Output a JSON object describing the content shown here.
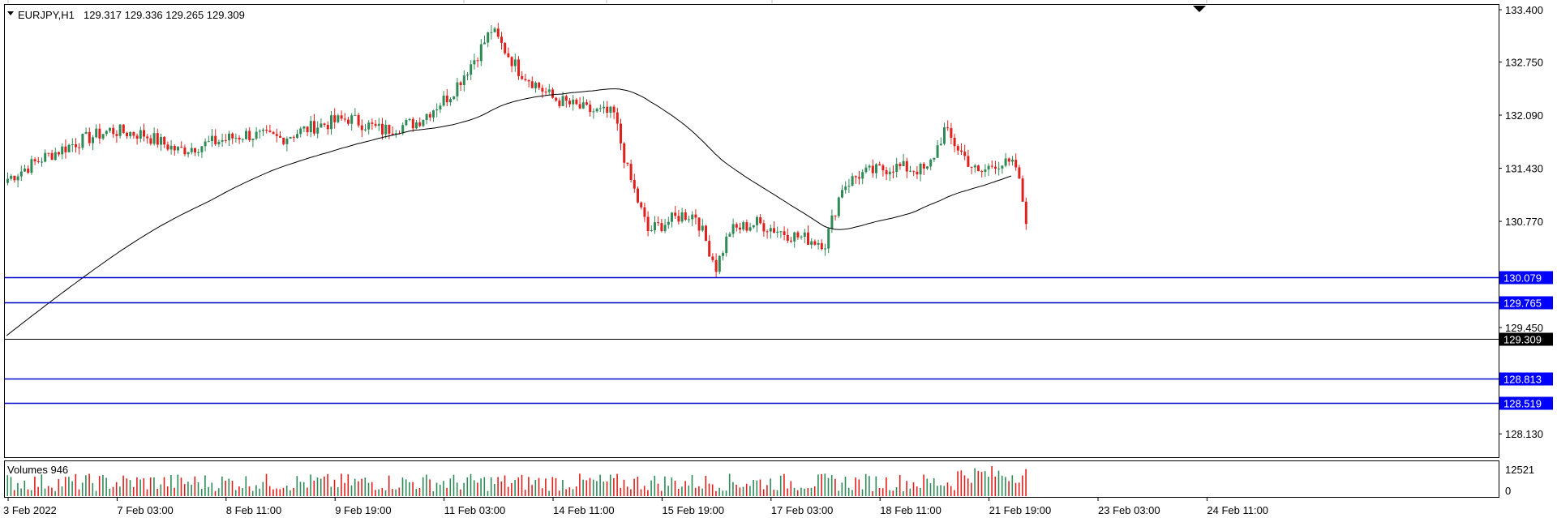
{
  "header": {
    "symbol_label": "EURJPY,H1",
    "ohlc_label": "129.317 129.336 129.265 129.309"
  },
  "volume_panel": {
    "label": "Volumes 946",
    "max_label": "12521",
    "min_label": "0"
  },
  "colors": {
    "bull": "#2e8b57",
    "bear": "#e0201c",
    "level_line": "#0000cc",
    "level_label_bg": "#0000ff",
    "moving_average": "#000000",
    "price_line": "#000000",
    "current_price_bg": "#000000"
  },
  "chart_data": {
    "type": "candlestick",
    "symbol": "EURJPY",
    "timeframe": "H1",
    "y_ticks": [
      "133.400",
      "132.750",
      "132.090",
      "131.430",
      "130.770",
      "129.450",
      "128.130"
    ],
    "y_range": [
      127.85,
      133.46
    ],
    "x_ticks": [
      "3 Feb 2022",
      "7 Feb 03:00",
      "8 Feb 11:00",
      "9 Feb 19:00",
      "11 Feb 03:00",
      "14 Feb 11:00",
      "15 Feb 19:00",
      "17 Feb 03:00",
      "18 Feb 11:00",
      "21 Feb 19:00",
      "23 Feb 03:00",
      "24 Feb 11:00"
    ],
    "bars_per_tick": 32,
    "total_bars": 300,
    "price_path": [
      [
        0,
        131.3
      ],
      [
        10,
        131.55
      ],
      [
        20,
        131.75
      ],
      [
        30,
        131.9
      ],
      [
        40,
        131.85
      ],
      [
        50,
        131.65
      ],
      [
        60,
        131.75
      ],
      [
        70,
        131.85
      ],
      [
        80,
        131.8
      ],
      [
        90,
        131.95
      ],
      [
        100,
        132.05
      ],
      [
        110,
        131.9
      ],
      [
        120,
        132.0
      ],
      [
        130,
        132.35
      ],
      [
        138,
        132.85
      ],
      [
        142,
        133.15
      ],
      [
        150,
        132.65
      ],
      [
        160,
        132.3
      ],
      [
        170,
        132.15
      ],
      [
        178,
        132.1
      ],
      [
        182,
        131.4
      ],
      [
        188,
        130.65
      ],
      [
        198,
        130.85
      ],
      [
        202,
        130.85
      ],
      [
        208,
        130.2
      ],
      [
        212,
        130.65
      ],
      [
        220,
        130.75
      ],
      [
        230,
        130.6
      ],
      [
        240,
        130.5
      ],
      [
        245,
        131.2
      ],
      [
        250,
        131.35
      ],
      [
        260,
        131.45
      ],
      [
        270,
        131.4
      ],
      [
        275,
        131.9
      ],
      [
        285,
        131.35
      ],
      [
        290,
        131.5
      ],
      [
        296,
        131.45
      ],
      [
        300,
        130.6
      ]
    ],
    "levels": [
      {
        "label": "130.079",
        "value": 130.079,
        "kind": "support_resistance"
      },
      {
        "label": "129.765",
        "value": 129.765,
        "kind": "support_resistance"
      },
      {
        "label": "129.309",
        "value": 129.309,
        "kind": "current_price"
      },
      {
        "label": "128.813",
        "value": 128.813,
        "kind": "support_resistance"
      },
      {
        "label": "128.519",
        "value": 128.519,
        "kind": "support_resistance"
      }
    ],
    "volume_range": [
      0,
      12521
    ]
  }
}
